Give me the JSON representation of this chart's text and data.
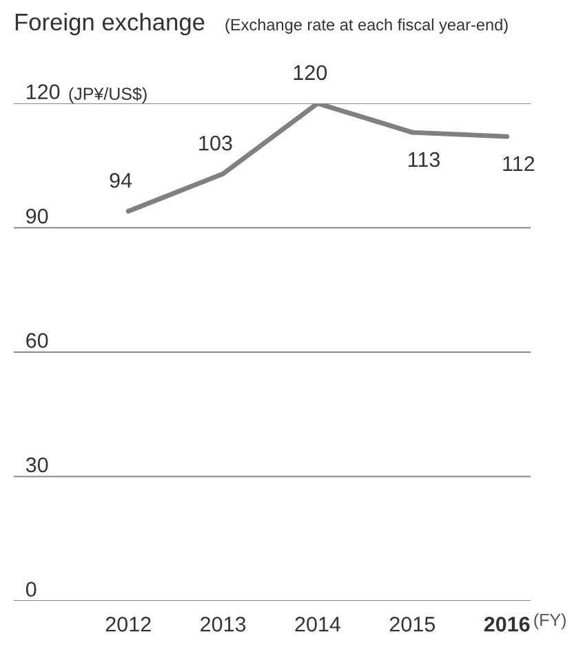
{
  "chart_data": {
    "type": "line",
    "title": "Foreign exchange",
    "subtitle": "(Exchange rate at each fiscal year-end)",
    "ylabel": "(JP¥/US$)",
    "xlabel": "(FY)",
    "categories": [
      "2012",
      "2013",
      "2014",
      "2015",
      "2016"
    ],
    "series": [
      {
        "color": "#808080",
        "values": [
          94,
          103,
          120,
          113,
          112
        ]
      }
    ],
    "ylim": [
      0,
      120
    ],
    "yticks": [
      0,
      30,
      60,
      90,
      120
    ],
    "grid": "y",
    "data_labels": true,
    "marker": "none",
    "line_style": "solid"
  }
}
